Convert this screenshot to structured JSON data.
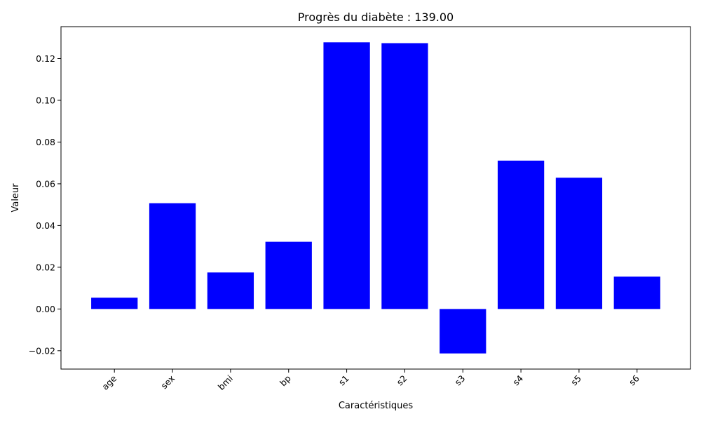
{
  "chart_data": {
    "type": "bar",
    "title": "Progrès du diabète : 139.00",
    "xlabel": "Caractéristiques",
    "ylabel": "Valeur",
    "categories": [
      "age",
      "sex",
      "bmi",
      "bp",
      "s1",
      "s2",
      "s3",
      "s4",
      "s5",
      "s6"
    ],
    "values": [
      0.0054,
      0.0507,
      0.0175,
      0.0322,
      0.1278,
      0.1274,
      -0.0213,
      0.0711,
      0.0629,
      0.0155
    ],
    "ylim": [
      -0.0288,
      0.1353
    ],
    "yticks": [
      -0.02,
      0.0,
      0.02,
      0.04,
      0.06,
      0.08,
      0.1,
      0.12
    ],
    "ytick_labels": [
      "−0.02",
      "0.00",
      "0.02",
      "0.04",
      "0.06",
      "0.08",
      "0.10",
      "0.12"
    ],
    "bar_color": "#0000ff",
    "grid": false,
    "legend": false
  }
}
